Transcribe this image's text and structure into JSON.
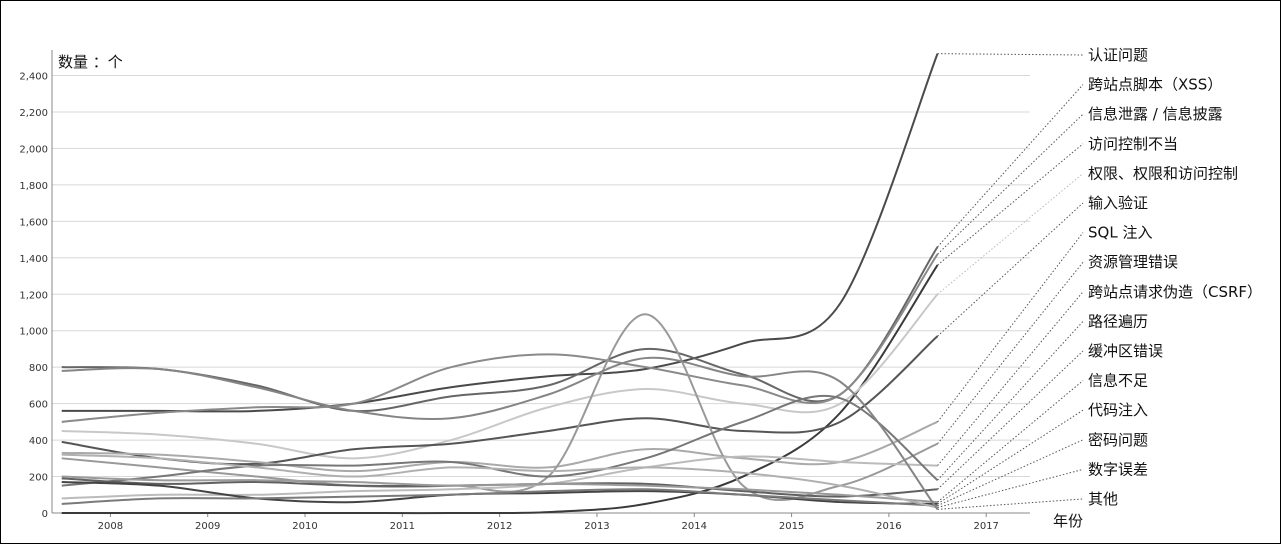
{
  "chart_data": {
    "type": "line",
    "y_axis_label": "数量 ：个",
    "x_axis_label": "年份",
    "xticks": [
      2008,
      2009,
      2010,
      2011,
      2012,
      2013,
      2014,
      2015,
      2016,
      2017
    ],
    "xlim": [
      2007.4,
      2017.45
    ],
    "ylim": [
      0,
      2540
    ],
    "yticks": [
      0,
      200,
      400,
      600,
      800,
      {
        "value": 1000,
        "label": "1,000"
      },
      {
        "value": 1200,
        "label": "1,200"
      },
      {
        "value": 1400,
        "label": "1,400"
      },
      {
        "value": 1600,
        "label": "1,600"
      },
      {
        "value": 1800,
        "label": "1,800"
      },
      {
        "value": 2000,
        "label": "2,000"
      },
      {
        "value": 2200,
        "label": "2,200"
      },
      {
        "value": 2400,
        "label": "2,400"
      }
    ],
    "grid": true,
    "x": [
      2007.5,
      2008.5,
      2009.5,
      2010.5,
      2011.5,
      2012.5,
      2013.5,
      2014.5,
      2015.5,
      2016.5
    ],
    "series": [
      {
        "name": "认证问题",
        "color": "#4a4a4a",
        "values": [
          560,
          560,
          560,
          600,
          690,
          750,
          790,
          930,
          1150,
          2520
        ]
      },
      {
        "name": "跨站点脚本（XSS）",
        "color": "#666666",
        "values": [
          800,
          790,
          700,
          560,
          640,
          700,
          900,
          760,
          650,
          1460
        ]
      },
      {
        "name": "信息泄露 / 信息披露",
        "color": "#8a8a8a",
        "values": [
          500,
          550,
          580,
          600,
          800,
          870,
          800,
          700,
          650,
          1420
        ]
      },
      {
        "name": "访问控制不当",
        "color": "#3a3a3a",
        "values": [
          0,
          0,
          0,
          0,
          0,
          5,
          50,
          200,
          550,
          1360
        ]
      },
      {
        "name": "权限、权限和访问控制",
        "color": "#c8c8c8",
        "values": [
          450,
          430,
          380,
          300,
          400,
          580,
          680,
          600,
          600,
          1200
        ]
      },
      {
        "name": "输入验证",
        "color": "#555555",
        "values": [
          390,
          300,
          270,
          350,
          380,
          450,
          520,
          450,
          500,
          970
        ]
      },
      {
        "name": "SQL 注入",
        "color": "#aaaaaa",
        "values": [
          330,
          320,
          280,
          230,
          280,
          250,
          350,
          300,
          280,
          500
        ]
      },
      {
        "name": "资源管理错误",
        "color": "#999999",
        "values": [
          300,
          250,
          200,
          150,
          150,
          200,
          1090,
          150,
          150,
          380
        ]
      },
      {
        "name": "跨站点请求伪造（CSRF）",
        "color": "#bbbbbb",
        "values": [
          80,
          100,
          100,
          120,
          130,
          160,
          250,
          310,
          280,
          260
        ]
      },
      {
        "name": "路径遍历",
        "color": "#777777",
        "values": [
          150,
          200,
          260,
          260,
          280,
          200,
          300,
          500,
          630,
          180
        ]
      },
      {
        "name": "缓冲区错误",
        "color": "#606060",
        "values": [
          190,
          160,
          170,
          150,
          150,
          160,
          160,
          120,
          90,
          130
        ]
      },
      {
        "name": "信息不足",
        "color": "#9a9a9a",
        "values": [
          200,
          180,
          180,
          170,
          150,
          160,
          150,
          130,
          100,
          60
        ]
      },
      {
        "name": "代码注入",
        "color": "#444444",
        "values": [
          170,
          150,
          80,
          60,
          100,
          110,
          120,
          100,
          60,
          50
        ]
      },
      {
        "name": "密码问题",
        "color": "#7a7a7a",
        "values": [
          50,
          80,
          80,
          90,
          100,
          120,
          130,
          100,
          70,
          40
        ]
      },
      {
        "name": "数字误差",
        "color": "#b0b0b0",
        "values": [
          320,
          300,
          250,
          200,
          250,
          230,
          250,
          220,
          150,
          30
        ]
      },
      {
        "name": "其他",
        "color": "#858585",
        "values": [
          780,
          790,
          690,
          560,
          520,
          650,
          850,
          750,
          720,
          20
        ]
      }
    ]
  }
}
